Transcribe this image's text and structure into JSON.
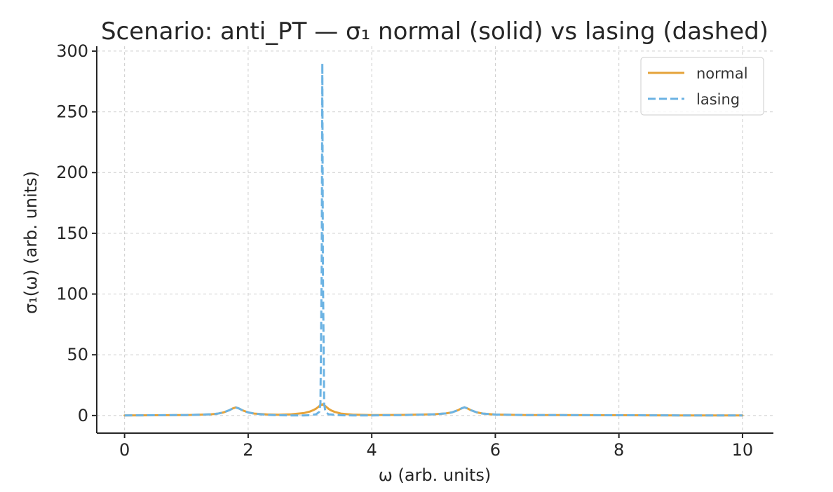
{
  "chart_data": {
    "type": "line",
    "title": "Scenario: anti_PT — σ₁ normal (solid) vs lasing (dashed)",
    "xlabel": "ω (arb. units)",
    "ylabel": "σ₁(ω) (arb. units)",
    "xlim": [
      -0.45,
      10.5
    ],
    "ylim": [
      -14.5,
      304
    ],
    "xticks": [
      0,
      2,
      4,
      6,
      8,
      10
    ],
    "yticks": [
      0,
      50,
      100,
      150,
      200,
      250,
      300
    ],
    "grid": true,
    "legend_position": "upper right",
    "series": [
      {
        "name": "normal",
        "style": "solid",
        "color": "#E5A33A",
        "x": [
          0.0,
          0.5,
          1.0,
          1.2,
          1.4,
          1.5,
          1.6,
          1.7,
          1.75,
          1.8,
          1.85,
          1.9,
          2.0,
          2.1,
          2.3,
          2.5,
          2.7,
          2.9,
          3.0,
          3.05,
          3.1,
          3.15,
          3.2,
          3.25,
          3.3,
          3.35,
          3.4,
          3.5,
          3.7,
          4.0,
          4.5,
          5.0,
          5.2,
          5.3,
          5.4,
          5.45,
          5.5,
          5.55,
          5.6,
          5.7,
          5.8,
          6.0,
          6.5,
          7.0,
          8.0,
          9.0,
          10.0
        ],
        "y": [
          0.1,
          0.2,
          0.4,
          0.6,
          1.0,
          1.5,
          2.5,
          4.5,
          5.8,
          6.7,
          5.8,
          4.5,
          2.5,
          1.6,
          0.9,
          0.7,
          1.0,
          2.0,
          3.3,
          4.3,
          5.7,
          7.7,
          9.3,
          7.7,
          5.5,
          4.0,
          3.0,
          1.6,
          0.7,
          0.4,
          0.5,
          1.0,
          1.7,
          2.6,
          4.5,
          5.8,
          6.8,
          5.8,
          4.5,
          2.6,
          1.6,
          0.8,
          0.4,
          0.3,
          0.2,
          0.1,
          0.1
        ]
      },
      {
        "name": "lasing",
        "style": "dashed",
        "color": "#6CB3E3",
        "x": [
          0.0,
          0.5,
          1.0,
          1.2,
          1.4,
          1.5,
          1.6,
          1.7,
          1.75,
          1.8,
          1.85,
          1.9,
          2.0,
          2.1,
          2.3,
          2.5,
          2.7,
          2.9,
          3.0,
          3.1,
          3.15,
          3.17,
          3.19,
          3.2,
          3.21,
          3.23,
          3.25,
          3.3,
          3.5,
          3.7,
          4.0,
          4.5,
          5.0,
          5.2,
          5.3,
          5.4,
          5.45,
          5.5,
          5.55,
          5.6,
          5.7,
          5.8,
          6.0,
          6.5,
          7.0,
          8.0,
          9.0,
          10.0
        ],
        "y": [
          0.1,
          0.2,
          0.4,
          0.6,
          1.0,
          1.5,
          2.5,
          4.5,
          5.8,
          6.7,
          5.8,
          4.5,
          2.5,
          1.6,
          0.5,
          0.2,
          0.1,
          0.1,
          0.2,
          1.0,
          3.0,
          10.0,
          120.0,
          290.0,
          120.0,
          10.0,
          3.0,
          1.0,
          0.2,
          0.1,
          0.1,
          0.3,
          1.0,
          1.7,
          2.6,
          4.5,
          5.8,
          6.8,
          5.8,
          4.5,
          2.6,
          1.6,
          0.8,
          0.4,
          0.3,
          0.2,
          0.1,
          0.1
        ]
      }
    ]
  }
}
